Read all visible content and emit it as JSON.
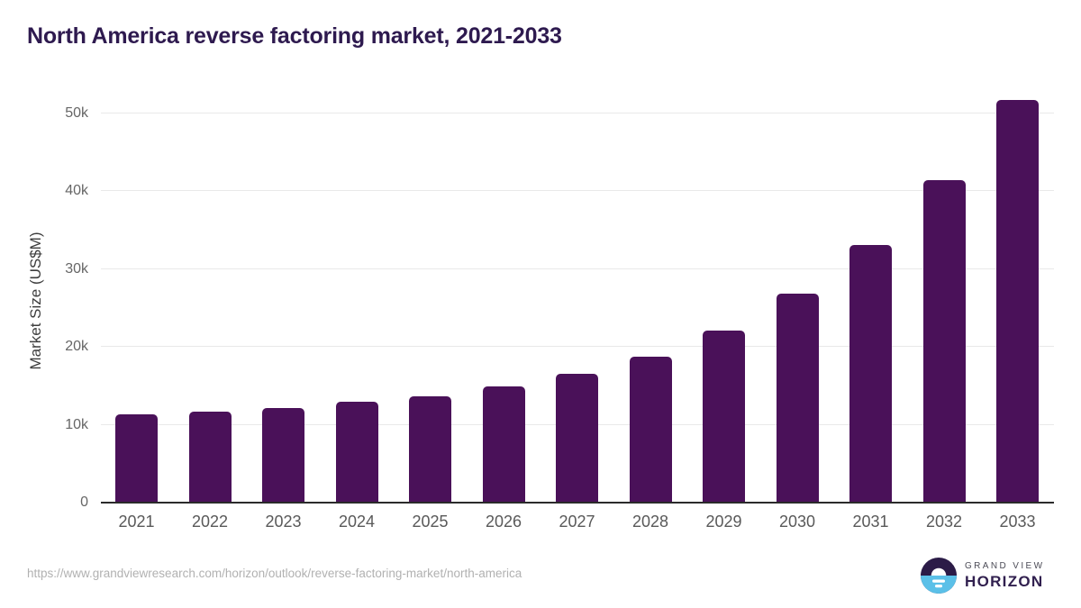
{
  "page": {
    "title": "North America reverse factoring market, 2021-2033"
  },
  "chart_data": {
    "type": "bar",
    "title": "North America reverse factoring market, 2021-2033",
    "categories": [
      "2021",
      "2022",
      "2023",
      "2024",
      "2025",
      "2026",
      "2027",
      "2028",
      "2029",
      "2030",
      "2031",
      "2032",
      "2033"
    ],
    "values": [
      11300,
      11700,
      12200,
      12900,
      13700,
      14900,
      16500,
      18700,
      22100,
      26800,
      33100,
      41400,
      51700
    ],
    "xlabel": "",
    "ylabel": "Market Size (US$M)",
    "ylim": [
      0,
      51800
    ],
    "yticks": [
      0,
      10000,
      20000,
      30000,
      40000,
      50000
    ],
    "ytick_labels": [
      "0",
      "10k",
      "20k",
      "30k",
      "40k",
      "50k"
    ],
    "grid": true,
    "legend": "none",
    "bar_color": "#4a1159"
  },
  "footer": {
    "source_url": "https://www.grandviewresearch.com/horizon/outlook/reverse-factoring-market/north-america",
    "logo": {
      "line1": "GRAND VIEW",
      "line2": "HORIZON"
    }
  },
  "colors": {
    "bar": "#4a1159",
    "title_text": "#2e1a4f",
    "gridline": "#e9e9e9",
    "axis_line": "#2b2b2b",
    "tick_text": "#666666",
    "url_text": "#b1b1b1",
    "logo_dark": "#2b1b47",
    "logo_blue": "#5bc0e8"
  }
}
